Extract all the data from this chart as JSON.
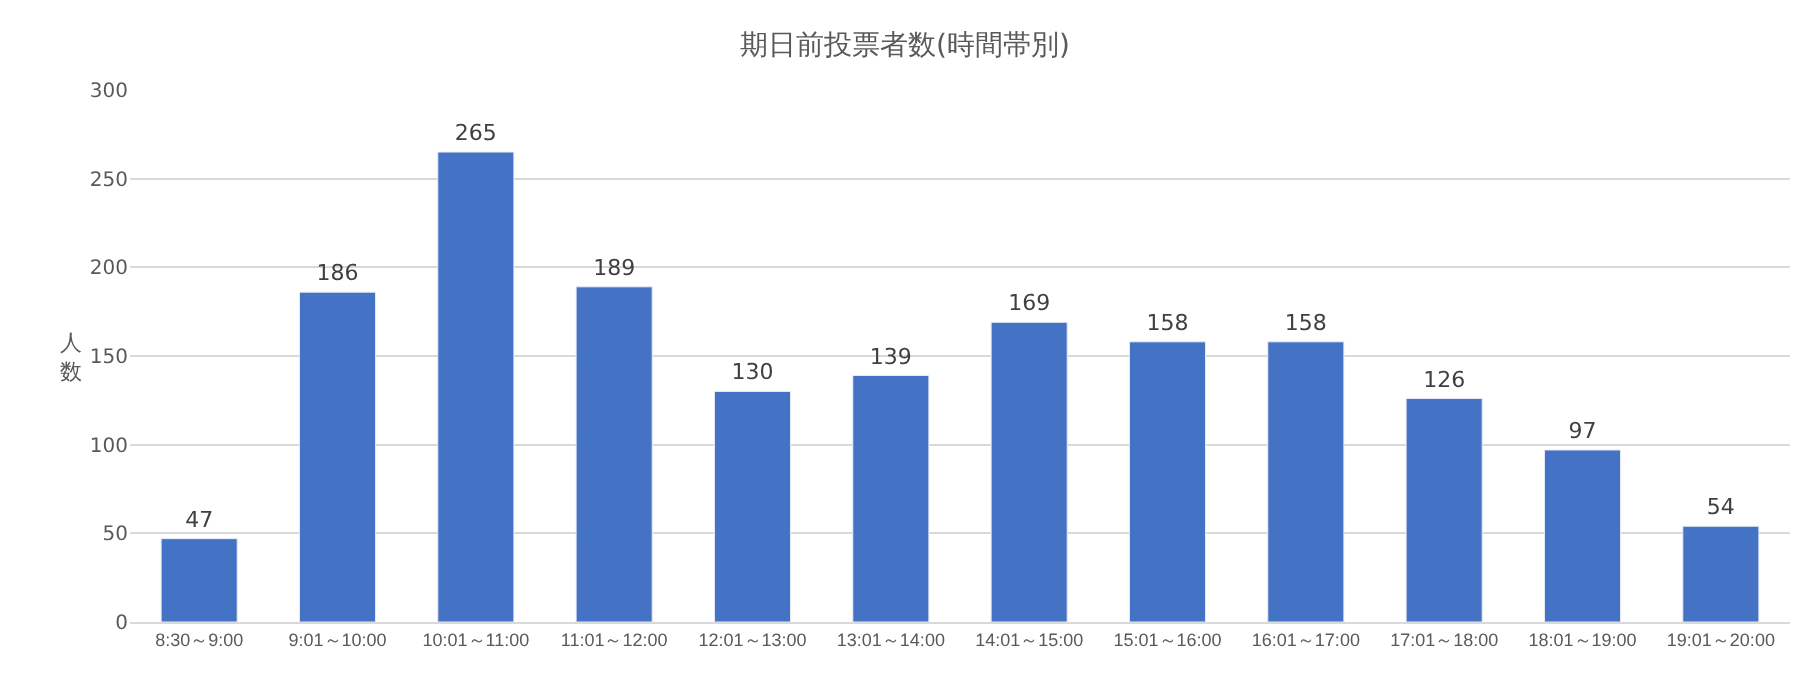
{
  "chart_data": {
    "type": "bar",
    "title": "期日前投票者数(時間帯別)",
    "ylabel": "人数",
    "categories": [
      "8:30～9:00",
      "9:01～10:00",
      "10:01～11:00",
      "11:01～12:00",
      "12:01～13:00",
      "13:01～14:00",
      "14:01～15:00",
      "15:01～16:00",
      "16:01～17:00",
      "17:01～18:00",
      "18:01～19:00",
      "19:01～20:00"
    ],
    "values": [
      47,
      186,
      265,
      189,
      130,
      139,
      169,
      158,
      158,
      126,
      97,
      54
    ],
    "color": "#4472c4",
    "ylim": [
      0,
      300
    ],
    "yticks": [
      0,
      50,
      100,
      150,
      200,
      250,
      300
    ],
    "grid": "y",
    "data_labels": true
  }
}
